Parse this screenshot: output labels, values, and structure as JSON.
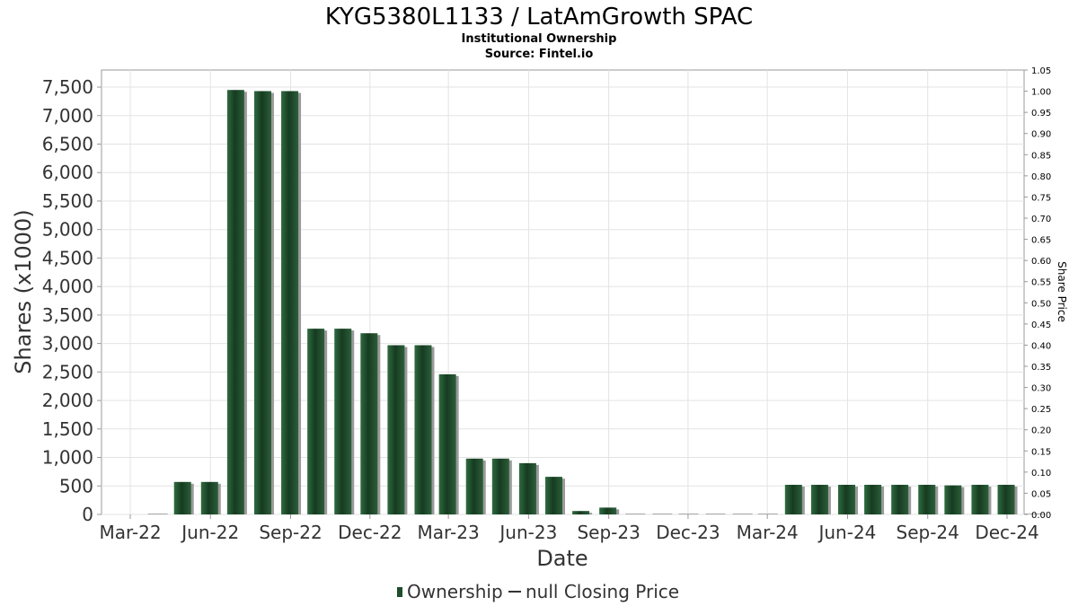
{
  "chart_data": {
    "type": "bar",
    "title": "KYG5380L1133 / LatAmGrowth SPAC",
    "subtitle": "Institutional Ownership",
    "source": "Source: Fintel.io",
    "xlabel": "Date",
    "ylabel": "Shares (x1000)",
    "y2label": "Share Price",
    "ylim": [
      0,
      7800
    ],
    "y2lim": [
      0,
      1.05
    ],
    "x_tick_labels": [
      "Mar-22",
      "Jun-22",
      "Sep-22",
      "Dec-22",
      "Mar-23",
      "Jun-23",
      "Sep-23",
      "Dec-23",
      "Mar-24",
      "Jun-24",
      "Sep-24",
      "Dec-24"
    ],
    "y_tick_labels": [
      "0",
      "500",
      "1,000",
      "1,500",
      "2,000",
      "2,500",
      "3,000",
      "3,500",
      "4,000",
      "4,500",
      "5,000",
      "5,500",
      "6,000",
      "6,500",
      "7,000",
      "7,500"
    ],
    "y2_tick_labels": [
      "0.00",
      "0.05",
      "0.10",
      "0.15",
      "0.20",
      "0.25",
      "0.30",
      "0.35",
      "0.40",
      "0.45",
      "0.50",
      "0.55",
      "0.60",
      "0.65",
      "0.70",
      "0.75",
      "0.80",
      "0.85",
      "0.90",
      "0.95",
      "1.00",
      "1.05"
    ],
    "grid": true,
    "legend_position": "bottom",
    "series": [
      {
        "name": "Ownership",
        "color": "#1e4d2b",
        "categories": [
          "2022-03-31",
          "2022-04-30",
          "2022-05-31",
          "2022-06-30",
          "2022-07-31",
          "2022-08-31",
          "2022-09-30",
          "2022-10-31",
          "2022-11-30",
          "2022-12-31",
          "2023-01-31",
          "2023-02-28",
          "2023-03-31",
          "2023-04-30",
          "2023-05-31",
          "2023-06-30",
          "2023-07-31",
          "2023-08-31",
          "2023-09-30",
          "2023-10-31",
          "2023-11-30",
          "2023-12-31",
          "2024-01-31",
          "2024-02-29",
          "2024-03-31",
          "2024-04-30",
          "2024-05-31",
          "2024-06-30",
          "2024-07-31",
          "2024-08-31",
          "2024-09-30",
          "2024-10-31",
          "2024-11-30",
          "2024-12-31"
        ],
        "values": [
          0,
          570,
          570,
          7450,
          7430,
          7430,
          3260,
          3260,
          3180,
          2970,
          2970,
          2460,
          980,
          980,
          900,
          660,
          60,
          120,
          0,
          0,
          0,
          0,
          0,
          0,
          520,
          520,
          520,
          520,
          520,
          520,
          510,
          520,
          520,
          0
        ]
      },
      {
        "name": "null Closing Price",
        "color": "#333333",
        "values": []
      }
    ]
  }
}
